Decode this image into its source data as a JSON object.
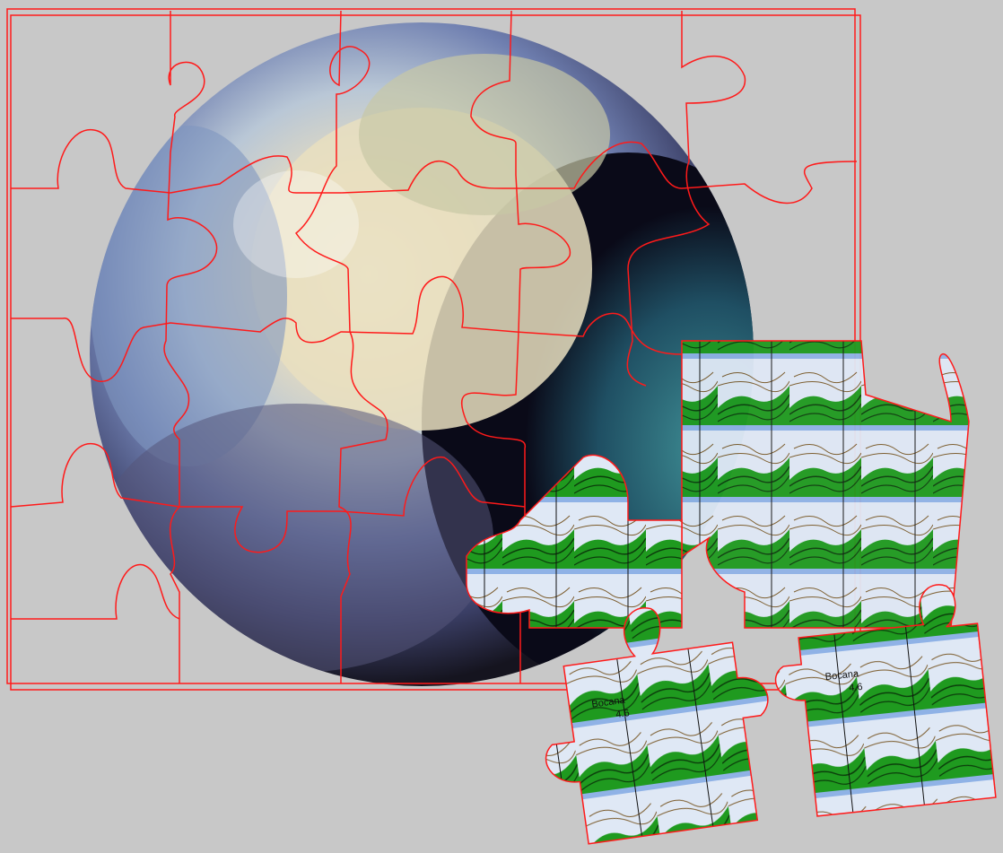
{
  "puzzle": {
    "main_image": "earth-globe",
    "loose_piece_image": "topographic-map",
    "grid": {
      "columns": 5,
      "rows": 4
    },
    "loose_pieces": 4,
    "cut_line_color": "#ff1a1a",
    "background_color": "#c8c8c8"
  },
  "map_labels": {
    "place_name": "Bocana",
    "elevation": "4.6"
  }
}
